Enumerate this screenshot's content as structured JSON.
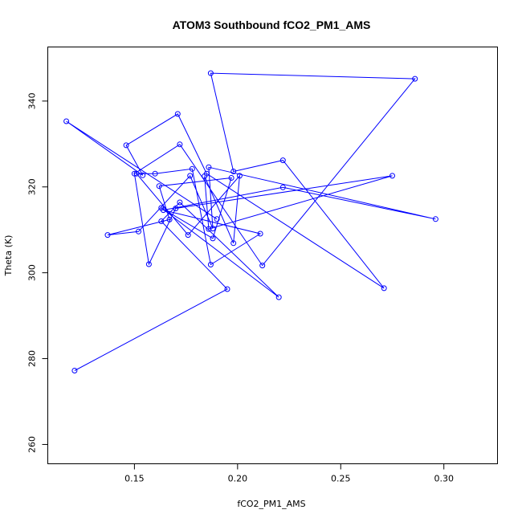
{
  "chart_data": {
    "type": "line",
    "title": "ATOM3 Southbound fCO2_PM1_AMS",
    "xlabel": "fCO2_PM1_AMS",
    "ylabel": "Theta (K)",
    "xlim": [
      0.108,
      0.326
    ],
    "ylim": [
      255.5,
      352.6
    ],
    "x_ticks": [
      0.15,
      0.2,
      0.25,
      0.3
    ],
    "x_tick_labels": [
      "0.15",
      "0.20",
      "0.25",
      "0.30"
    ],
    "y_ticks": [
      260,
      280,
      300,
      320,
      340
    ],
    "y_tick_labels": [
      "260",
      "280",
      "300",
      "320",
      "340"
    ],
    "grid": false,
    "legend": "none",
    "color": "#0000ff",
    "marker": "open-circle",
    "series": [
      {
        "x": [
          0.121,
          0.195,
          0.163,
          0.172,
          0.22,
          0.163,
          0.188,
          0.197,
          0.162,
          0.167,
          0.137,
          0.152,
          0.177,
          0.188,
          0.186,
          0.296,
          0.222,
          0.164,
          0.211,
          0.187,
          0.178,
          0.16,
          0.151,
          0.176,
          0.201,
          0.198,
          0.184,
          0.186,
          0.275,
          0.17,
          0.157,
          0.15,
          0.172,
          0.212,
          0.286,
          0.187,
          0.198,
          0.222,
          0.271,
          0.185,
          0.171,
          0.146,
          0.154,
          0.117,
          0.19
        ],
        "y": [
          277.2,
          296.2,
          312.0,
          316.4,
          294.3,
          315.1,
          308.0,
          322.1,
          320.2,
          312.4,
          308.8,
          309.6,
          322.6,
          310.3,
          324.6,
          312.5,
          319.9,
          314.6,
          309.1,
          301.9,
          324.2,
          323.1,
          323.1,
          308.8,
          322.6,
          306.9,
          322.5,
          310.2,
          322.6,
          315.0,
          302.0,
          323.1,
          329.9,
          301.7,
          345.2,
          346.5,
          323.6,
          326.2,
          296.4,
          323.1,
          337.0,
          329.7,
          322.7,
          335.3,
          312.5
        ]
      }
    ]
  }
}
